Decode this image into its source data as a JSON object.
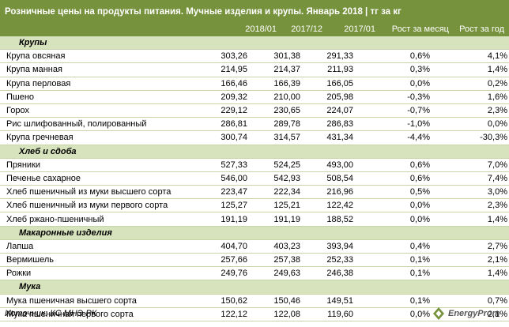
{
  "title": "Розничные цены на продукты питания. Мучные изделия и крупы. Январь 2018 | тг за кг",
  "columns": [
    "2018/01",
    "2017/12",
    "2017/01",
    "Рост за месяц",
    "Рост за год"
  ],
  "colors": {
    "header_bg": "#76923c",
    "section_bg": "#d7e3bc",
    "row_line": "#c6d4a8"
  },
  "sections": [
    {
      "name": "Крупы",
      "rows": [
        {
          "name": "Крупа овсяная",
          "v1": "303,26",
          "v2": "301,38",
          "v3": "291,33",
          "m": "0,6%",
          "y": "4,1%"
        },
        {
          "name": "Крупа манная",
          "v1": "214,95",
          "v2": "214,37",
          "v3": "211,93",
          "m": "0,3%",
          "y": "1,4%"
        },
        {
          "name": "Крупа перловая",
          "v1": "166,46",
          "v2": "166,39",
          "v3": "166,05",
          "m": "0,0%",
          "y": "0,2%"
        },
        {
          "name": "Пшено",
          "v1": "209,32",
          "v2": "210,00",
          "v3": "205,98",
          "m": "-0,3%",
          "y": "1,6%"
        },
        {
          "name": "Горох",
          "v1": "229,12",
          "v2": "230,65",
          "v3": "224,07",
          "m": "-0,7%",
          "y": "2,3%"
        },
        {
          "name": "Рис шлифованный, полированный",
          "v1": "286,81",
          "v2": "289,78",
          "v3": "286,83",
          "m": "-1,0%",
          "y": "0,0%"
        },
        {
          "name": "Крупа гречневая",
          "v1": "300,74",
          "v2": "314,57",
          "v3": "431,34",
          "m": "-4,4%",
          "y": "-30,3%"
        }
      ]
    },
    {
      "name": "Хлеб и сдоба",
      "rows": [
        {
          "name": "Пряники",
          "v1": "527,33",
          "v2": "524,25",
          "v3": "493,00",
          "m": "0,6%",
          "y": "7,0%"
        },
        {
          "name": "Печенье сахарное",
          "v1": "546,00",
          "v2": "542,93",
          "v3": "508,54",
          "m": "0,6%",
          "y": "7,4%"
        },
        {
          "name": "Хлеб пшеничный из муки высшего сорта",
          "v1": "223,47",
          "v2": "222,34",
          "v3": "216,96",
          "m": "0,5%",
          "y": "3,0%"
        },
        {
          "name": "Хлеб пшеничный из муки первого сорта",
          "v1": "125,27",
          "v2": "125,21",
          "v3": "122,42",
          "m": "0,0%",
          "y": "2,3%"
        },
        {
          "name": "Хлеб ржано-пшеничный",
          "v1": "191,19",
          "v2": "191,19",
          "v3": "188,52",
          "m": "0,0%",
          "y": "1,4%"
        }
      ]
    },
    {
      "name": "Макаронные изделия",
      "rows": [
        {
          "name": "Лапша",
          "v1": "404,70",
          "v2": "403,23",
          "v3": "393,94",
          "m": "0,4%",
          "y": "2,7%"
        },
        {
          "name": "Вермишель",
          "v1": "257,66",
          "v2": "257,38",
          "v3": "252,33",
          "m": "0,1%",
          "y": "2,1%"
        },
        {
          "name": "Рожки",
          "v1": "249,76",
          "v2": "249,63",
          "v3": "246,38",
          "m": "0,1%",
          "y": "1,4%"
        }
      ]
    },
    {
      "name": "Мука",
      "rows": [
        {
          "name": "Мука пшеничная высшего сорта",
          "v1": "150,62",
          "v2": "150,46",
          "v3": "149,51",
          "m": "0,1%",
          "y": "0,7%"
        },
        {
          "name": "Мука пшеничная первого сорта",
          "v1": "122,12",
          "v2": "122,08",
          "v3": "119,60",
          "m": "0,0%",
          "y": "2,1%"
        }
      ]
    }
  ],
  "source": "Источник: КС МНЭ РК",
  "logo_text": "EnergyProm",
  "logo_icon": "energyprom-logo-icon"
}
